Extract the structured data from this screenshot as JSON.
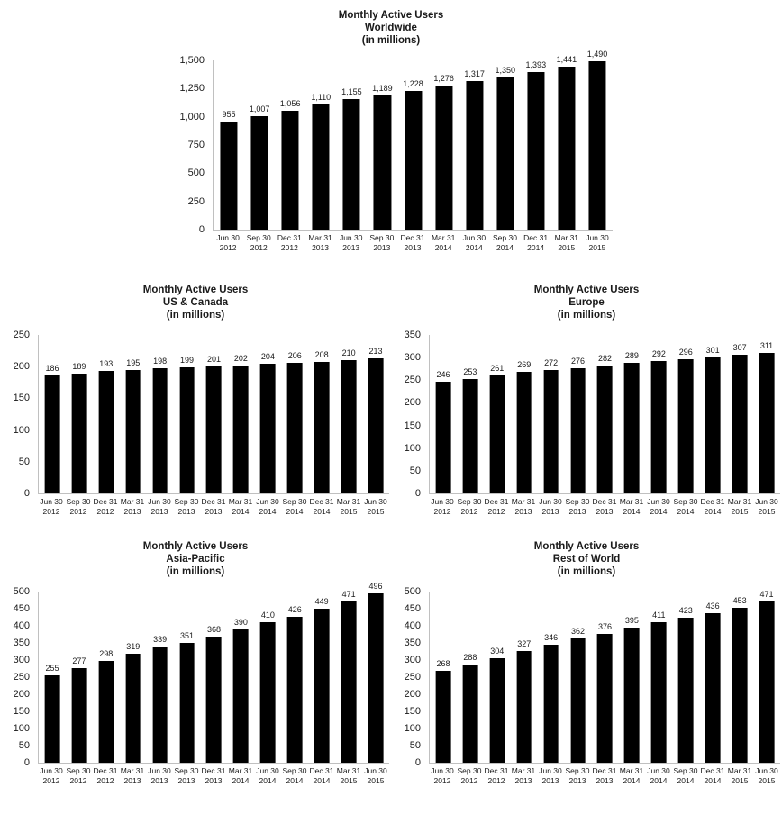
{
  "page": {
    "background": "#ffffff"
  },
  "style": {
    "bar_color": "#000000",
    "axis_line_color": "#c0c0c0",
    "text_color": "#1a1a1a"
  },
  "chart_data": [
    {
      "id": "worldwide",
      "type": "bar",
      "title": "Monthly Active Users",
      "region": "Worldwide",
      "units": "(in millions)",
      "legend": "none",
      "grid": false,
      "data_labels": true,
      "categories": [
        "Jun 30 2012",
        "Sep 30 2012",
        "Dec 31 2012",
        "Mar 31 2013",
        "Jun 30 2013",
        "Sep 30 2013",
        "Dec 31 2013",
        "Mar 31 2014",
        "Jun 30 2014",
        "Sep 30 2014",
        "Dec 31 2014",
        "Mar 31 2015",
        "Jun 30 2015"
      ],
      "values": [
        955,
        1007,
        1056,
        1110,
        1155,
        1189,
        1228,
        1276,
        1317,
        1350,
        1393,
        1441,
        1490
      ],
      "ylim": [
        0,
        1500
      ],
      "ytick_step": 250,
      "ytick_labels": [
        "0",
        "250",
        "500",
        "750",
        "1,000",
        "1,250",
        "1,500"
      ]
    },
    {
      "id": "us-canada",
      "type": "bar",
      "title": "Monthly Active Users",
      "region": "US & Canada",
      "units": "(in millions)",
      "legend": "none",
      "grid": false,
      "data_labels": true,
      "categories": [
        "Jun 30 2012",
        "Sep 30 2012",
        "Dec 31 2012",
        "Mar 31 2013",
        "Jun 30 2013",
        "Sep 30 2013",
        "Dec 31 2013",
        "Mar 31 2014",
        "Jun 30 2014",
        "Sep 30 2014",
        "Dec 31 2014",
        "Mar 31 2015",
        "Jun 30 2015"
      ],
      "values": [
        186,
        189,
        193,
        195,
        198,
        199,
        201,
        202,
        204,
        206,
        208,
        210,
        213
      ],
      "ylim": [
        0,
        250
      ],
      "ytick_step": 50,
      "ytick_labels": [
        "0",
        "50",
        "100",
        "150",
        "200",
        "250"
      ]
    },
    {
      "id": "europe",
      "type": "bar",
      "title": "Monthly Active Users",
      "region": "Europe",
      "units": "(in millions)",
      "legend": "none",
      "grid": false,
      "data_labels": true,
      "categories": [
        "Jun 30 2012",
        "Sep 30 2012",
        "Dec 31 2012",
        "Mar 31 2013",
        "Jun 30 2013",
        "Sep 30 2013",
        "Dec 31 2013",
        "Mar 31 2014",
        "Jun 30 2014",
        "Sep 30 2014",
        "Dec 31 2014",
        "Mar 31 2015",
        "Jun 30 2015"
      ],
      "values": [
        246,
        253,
        261,
        269,
        272,
        276,
        282,
        289,
        292,
        296,
        301,
        307,
        311
      ],
      "ylim": [
        0,
        350
      ],
      "ytick_step": 50,
      "ytick_labels": [
        "0",
        "50",
        "100",
        "150",
        "200",
        "250",
        "300",
        "350"
      ]
    },
    {
      "id": "asia-pacific",
      "type": "bar",
      "title": "Monthly Active Users",
      "region": "Asia-Pacific",
      "units": "(in millions)",
      "legend": "none",
      "grid": false,
      "data_labels": true,
      "categories": [
        "Jun 30 2012",
        "Sep 30 2012",
        "Dec 31 2012",
        "Mar 31 2013",
        "Jun 30 2013",
        "Sep 30 2013",
        "Dec 31 2013",
        "Mar 31 2014",
        "Jun 30 2014",
        "Sep 30 2014",
        "Dec 31 2014",
        "Mar 31 2015",
        "Jun 30 2015"
      ],
      "values": [
        255,
        277,
        298,
        319,
        339,
        351,
        368,
        390,
        410,
        426,
        449,
        471,
        496
      ],
      "ylim": [
        0,
        500
      ],
      "ytick_step": 50,
      "ytick_labels": [
        "0",
        "50",
        "100",
        "150",
        "200",
        "250",
        "300",
        "350",
        "400",
        "450",
        "500"
      ]
    },
    {
      "id": "rest-of-world",
      "type": "bar",
      "title": "Monthly Active Users",
      "region": "Rest of World",
      "units": "(in millions)",
      "legend": "none",
      "grid": false,
      "data_labels": true,
      "categories": [
        "Jun 30 2012",
        "Sep 30 2012",
        "Dec 31 2012",
        "Mar 31 2013",
        "Jun 30 2013",
        "Sep 30 2013",
        "Dec 31 2013",
        "Mar 31 2014",
        "Jun 30 2014",
        "Sep 30 2014",
        "Dec 31 2014",
        "Mar 31 2015",
        "Jun 30 2015"
      ],
      "values": [
        268,
        288,
        304,
        327,
        346,
        362,
        376,
        395,
        411,
        423,
        436,
        453,
        471
      ],
      "ylim": [
        0,
        500
      ],
      "ytick_step": 50,
      "ytick_labels": [
        "0",
        "50",
        "100",
        "150",
        "200",
        "250",
        "300",
        "350",
        "400",
        "450",
        "500"
      ]
    }
  ]
}
